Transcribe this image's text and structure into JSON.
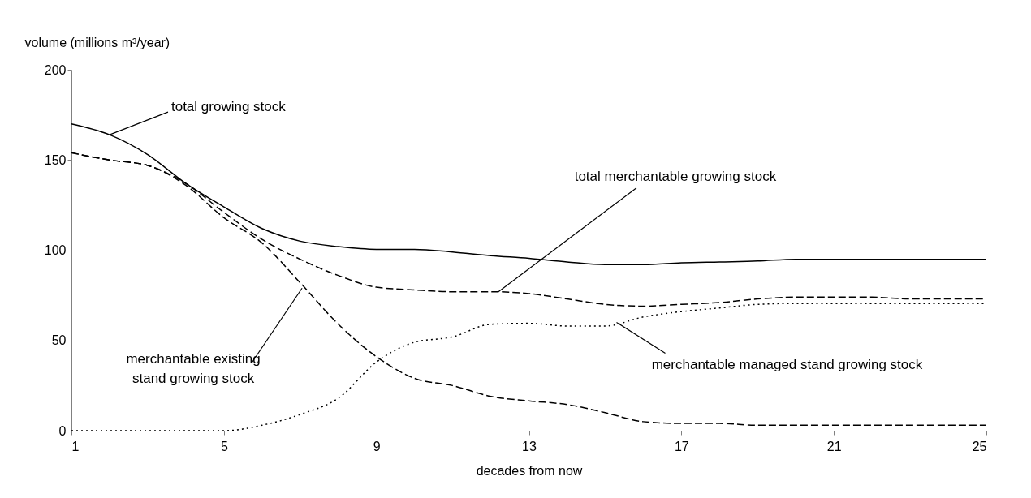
{
  "chart_data": {
    "type": "line",
    "xlabel": "decades from now",
    "ylabel": "volume (millions m³/year)",
    "x": [
      1,
      2,
      3,
      4,
      5,
      6,
      7,
      8,
      9,
      10,
      11,
      12,
      13,
      14,
      15,
      16,
      17,
      18,
      19,
      20,
      21,
      22,
      23,
      24,
      25
    ],
    "series": [
      {
        "color": "#000000",
        "line_style": "solid",
        "values": [
          170,
          164,
          153,
          137,
          124,
          112,
          105,
          102,
          100.5,
          100.5,
          99,
          97,
          95.5,
          93.5,
          92,
          92,
          93,
          93.5,
          94,
          95,
          95,
          95,
          95,
          95,
          95
        ]
      },
      {
        "color": "#000000",
        "line_style": "dashed",
        "values": [
          154,
          150,
          147,
          137,
          121,
          106,
          95,
          86,
          79.5,
          78,
          77,
          77,
          76,
          73,
          70,
          69,
          70,
          71,
          73,
          74,
          74,
          74,
          73,
          73,
          73
        ]
      },
      {
        "color": "#000000",
        "line_style": "dashed",
        "values": [
          154,
          150,
          147,
          136,
          118,
          104,
          82,
          59,
          41,
          29,
          25,
          19,
          16.5,
          14.5,
          10,
          5,
          4,
          4,
          3,
          3,
          3,
          3,
          3,
          3,
          3
        ]
      },
      {
        "color": "#000000",
        "line_style": "dotted",
        "values": [
          0,
          0,
          0,
          0,
          0,
          3,
          9,
          18,
          38,
          49,
          52,
          59,
          59.5,
          58,
          58,
          63,
          66,
          68,
          70,
          70.5,
          70.5,
          70.5,
          70.5,
          70.5,
          70.5
        ]
      }
    ],
    "annotations": [
      {
        "text": "total growing stock",
        "x": 2,
        "y": 164
      },
      {
        "text": "total merchantable growing stock",
        "x": 12.2,
        "y": 77
      },
      {
        "text": "merchantable existing stand growing stock",
        "x": 7.05,
        "y": 79
      },
      {
        "text": "merchantable managed stand growing stock",
        "x": 15.3,
        "y": 60
      }
    ],
    "xlim": [
      1,
      25
    ],
    "xticks": [
      1,
      5,
      9,
      13,
      17,
      21,
      25
    ],
    "ylim": [
      0,
      200
    ],
    "yticks": [
      0,
      50,
      100,
      150,
      200
    ],
    "marker": "none"
  }
}
